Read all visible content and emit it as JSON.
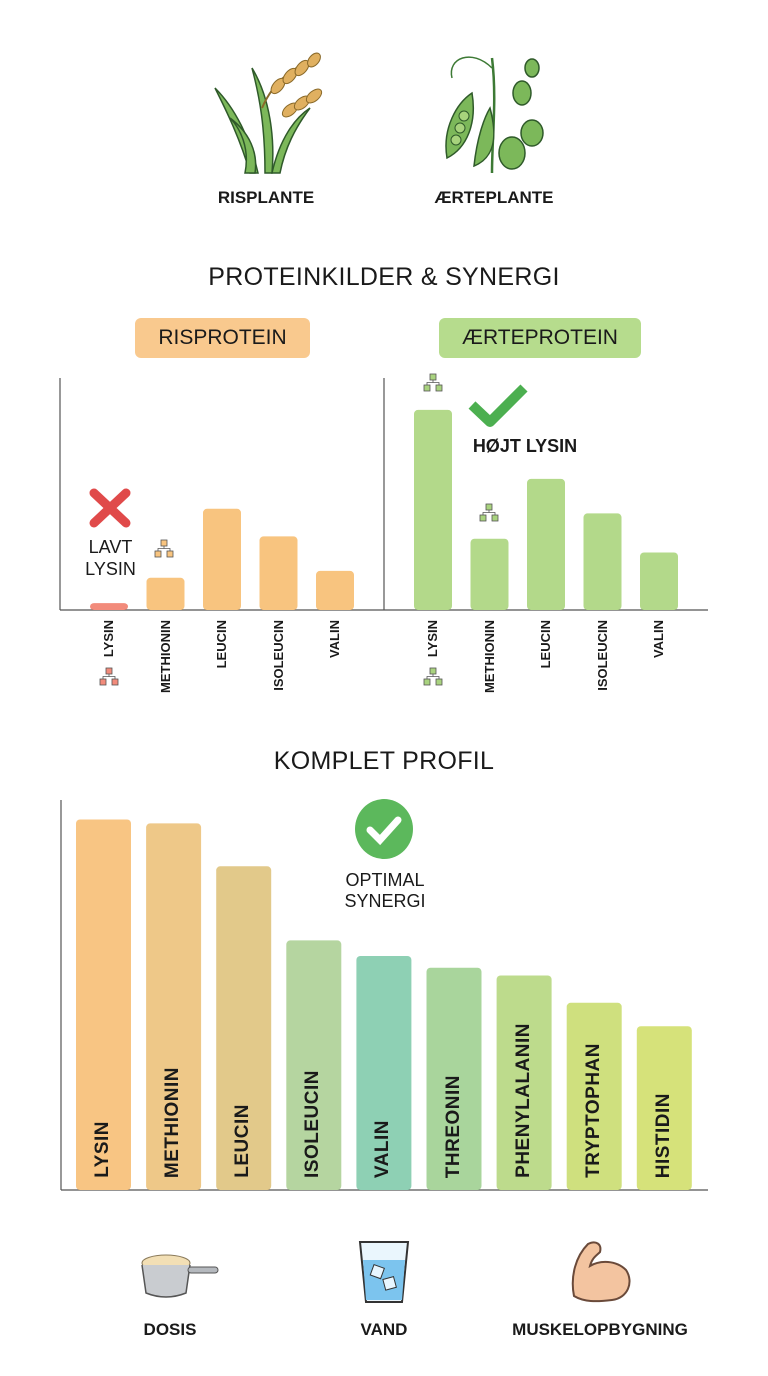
{
  "plants": {
    "rice": "RISPLANTE",
    "pea": "ÆRTEPLANTE"
  },
  "section1_title": "PROTEINKILDER & SYNERGI",
  "section2_title": "KOMPLET PROFIL",
  "chart_data": [
    {
      "type": "bar",
      "title": "RISPROTEIN",
      "categories": [
        "LYSIN",
        "METHIONIN",
        "LEUCIN",
        "ISOLEUCIN",
        "VALIN"
      ],
      "values": [
        3,
        14,
        44,
        32,
        17
      ],
      "color": "#f8c47f",
      "highlight_color": "#f28b7b",
      "annotation": "LAVT LYSIN",
      "annotation_icon": "red-x-icon",
      "ylim": [
        0,
        100
      ]
    },
    {
      "type": "bar",
      "title": "ÆRTEPROTEIN",
      "categories": [
        "LYSIN",
        "METHIONIN",
        "LEUCIN",
        "ISOLEUCIN",
        "VALIN"
      ],
      "values": [
        87,
        31,
        57,
        42,
        25
      ],
      "color": "#b3d98a",
      "annotation": "HØJT LYSIN",
      "annotation_icon": "green-check-icon",
      "ylim": [
        0,
        100
      ]
    },
    {
      "type": "bar",
      "title": "KOMPLET PROFIL",
      "categories": [
        "LYSIN",
        "METHIONIN",
        "LEUCIN",
        "ISOLEUCIN",
        "VALIN",
        "THREONIN",
        "PHENYLALANIN",
        "TRYPTOPHAN",
        "HISTIDIN"
      ],
      "values": [
        95,
        94,
        83,
        64,
        60,
        57,
        55,
        48,
        42
      ],
      "colors": [
        "#f8c583",
        "#eec888",
        "#e2c98a",
        "#b5d5a0",
        "#8ed0b4",
        "#a9d59c",
        "#bddb8c",
        "#cfe07e",
        "#d6e27a"
      ],
      "annotation": "OPTIMAL SYNERGI",
      "annotation_icon": "check-circle-icon",
      "ylim": [
        0,
        100
      ]
    }
  ],
  "footer": {
    "dose": "DOSIS",
    "water": "VAND",
    "muscle": "MUSKELOPBYGNING"
  }
}
